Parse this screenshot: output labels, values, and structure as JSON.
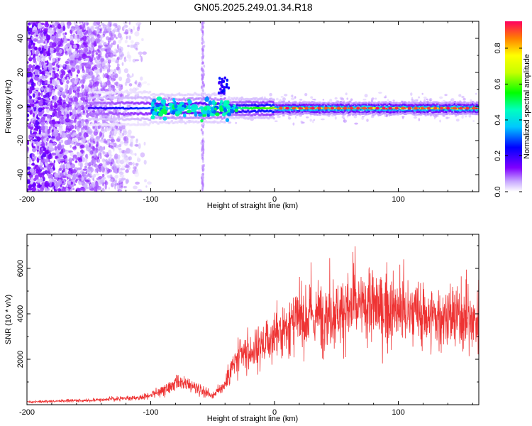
{
  "title": "GN05.2025.249.01.34.R18",
  "chart_data": [
    {
      "type": "heatmap",
      "name": "spectrogram",
      "xlabel": "Height of straight line (km)",
      "ylabel": "Frequency (Hz)",
      "xlim": [
        -200,
        165
      ],
      "ylim": [
        -50,
        50
      ],
      "xticks": [
        -200,
        -100,
        0,
        100
      ],
      "yticks": [
        -40,
        -20,
        0,
        20,
        40
      ],
      "colorbar": {
        "label": "Normalized spectral amplitude",
        "range": [
          0,
          0.95
        ],
        "ticks": [
          0.0,
          0.2,
          0.4,
          0.6,
          0.8
        ]
      },
      "features": {
        "noise_region_x": [
          -200,
          -100
        ],
        "signal_onset_x": -150,
        "interference_line_x": -58,
        "carrier_frequency_hz": -1,
        "strong_carrier_from_x": 0
      }
    },
    {
      "type": "line",
      "name": "snr",
      "xlabel": "Height of straight line (km)",
      "ylabel": "SNR (10 * v/v)",
      "xlim": [
        -200,
        165
      ],
      "ylim": [
        0,
        7500
      ],
      "xticks": [
        -200,
        -100,
        0,
        100
      ],
      "yticks": [
        2000,
        4000,
        6000
      ],
      "color": "#ee3333",
      "series": [
        {
          "name": "SNR",
          "x": [
            -200,
            -150,
            -110,
            -90,
            -80,
            -70,
            -60,
            -50,
            -40,
            -35,
            -30,
            -20,
            -10,
            0,
            10,
            20,
            40,
            60,
            80,
            100,
            120,
            140,
            165
          ],
          "values": [
            120,
            200,
            300,
            600,
            900,
            900,
            700,
            400,
            900,
            1600,
            2000,
            2300,
            2600,
            3000,
            3500,
            3700,
            4000,
            4200,
            4300,
            4100,
            3900,
            3800,
            3700
          ]
        }
      ]
    }
  ]
}
